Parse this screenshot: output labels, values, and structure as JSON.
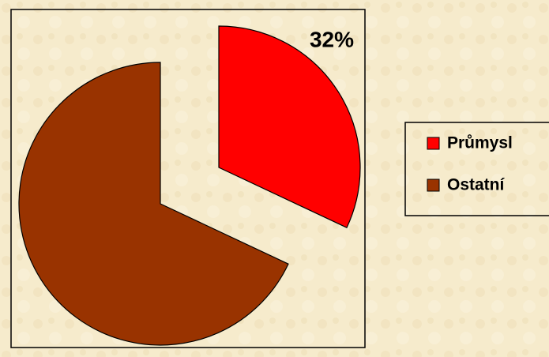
{
  "chart_data": {
    "type": "pie",
    "categories": [
      "Průmysl",
      "Ostatní"
    ],
    "values": [
      32,
      68
    ],
    "value_labels": [
      "32%",
      null
    ],
    "colors": [
      "#ff0000",
      "#993300"
    ],
    "legend": "right"
  }
}
